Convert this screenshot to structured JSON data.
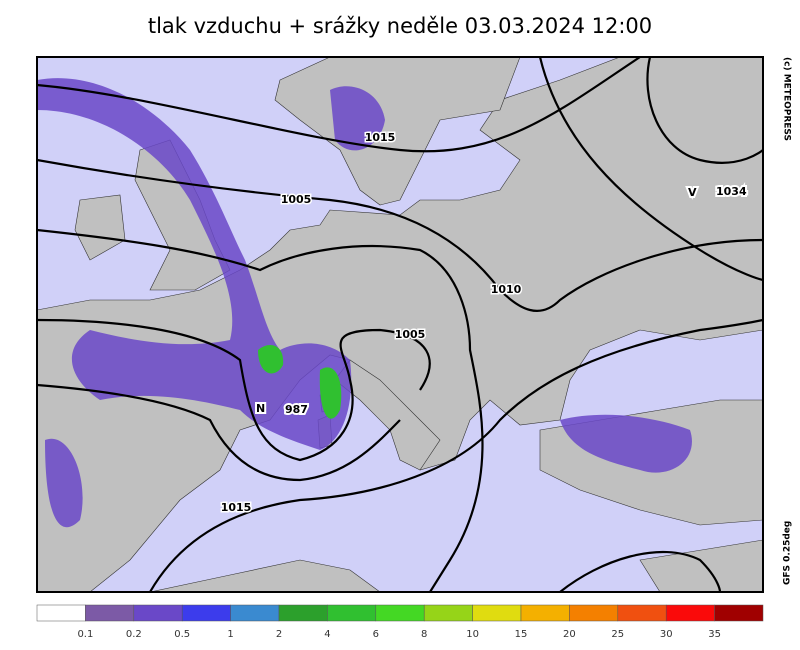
{
  "title": "tlak vzduchu + srážky  neděle 03.03.2024 12:00",
  "credits": {
    "copyright": "(c) METEOPRESS",
    "model": "GFS 0.25deg"
  },
  "isobar_labels": [
    1015,
    1005,
    1010,
    1005,
    1015
  ],
  "pressure_centers": [
    {
      "letter": "N",
      "value": 987
    },
    {
      "letter": "V",
      "value": 1034
    }
  ],
  "legend": {
    "colors": [
      "#ffffff",
      "#7c5aa6",
      "#6a48c8",
      "#3c3cec",
      "#3a8ad0",
      "#2ca02c",
      "#30c030",
      "#44d824",
      "#96d418",
      "#e0dc10",
      "#f4b000",
      "#f48000",
      "#f05010",
      "#fa0a0a",
      "#a00000"
    ],
    "labels": [
      0.1,
      0.2,
      0.5,
      1,
      2,
      4,
      6,
      8,
      10,
      15,
      20,
      25,
      30,
      35
    ]
  }
}
